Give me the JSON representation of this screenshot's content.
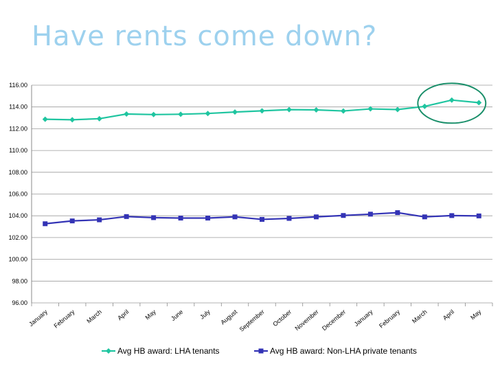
{
  "slide": {
    "title": "Have rents come down?",
    "title_color": "#9dd1ee"
  },
  "chart_data": {
    "type": "line",
    "title": "",
    "xlabel": "",
    "ylabel": "",
    "categories": [
      "January",
      "February",
      "March",
      "April",
      "May",
      "June",
      "July",
      "August",
      "September",
      "October",
      "November",
      "December",
      "January",
      "February",
      "March",
      "April",
      "May"
    ],
    "ylim": [
      96.0,
      116.0
    ],
    "ytick_labels": [
      "96.00",
      "98.00",
      "100.00",
      "102.00",
      "104.00",
      "106.00",
      "108.00",
      "110.00",
      "112.00",
      "114.00",
      "116.00"
    ],
    "grid": true,
    "legend_position": "bottom",
    "series": [
      {
        "name": "Avg HB award: LHA tenants",
        "color": "#1fc5a0",
        "marker": "diamond",
        "values": [
          112.87,
          112.82,
          112.92,
          113.35,
          113.3,
          113.33,
          113.4,
          113.53,
          113.64,
          113.75,
          113.73,
          113.63,
          113.82,
          113.76,
          114.05,
          114.63,
          114.39
        ]
      },
      {
        "name": "Avg HB award: Non-LHA private tenants",
        "color": "#3333b5",
        "marker": "square",
        "values": [
          103.27,
          103.53,
          103.63,
          103.93,
          103.83,
          103.79,
          103.79,
          103.9,
          103.67,
          103.76,
          103.9,
          104.03,
          104.15,
          104.29,
          103.9,
          104.02,
          103.99
        ]
      }
    ],
    "annotations": [
      {
        "type": "ellipse",
        "around_categories": [
          14,
          16
        ],
        "series": 0,
        "color": "#1a8f6a"
      }
    ]
  }
}
